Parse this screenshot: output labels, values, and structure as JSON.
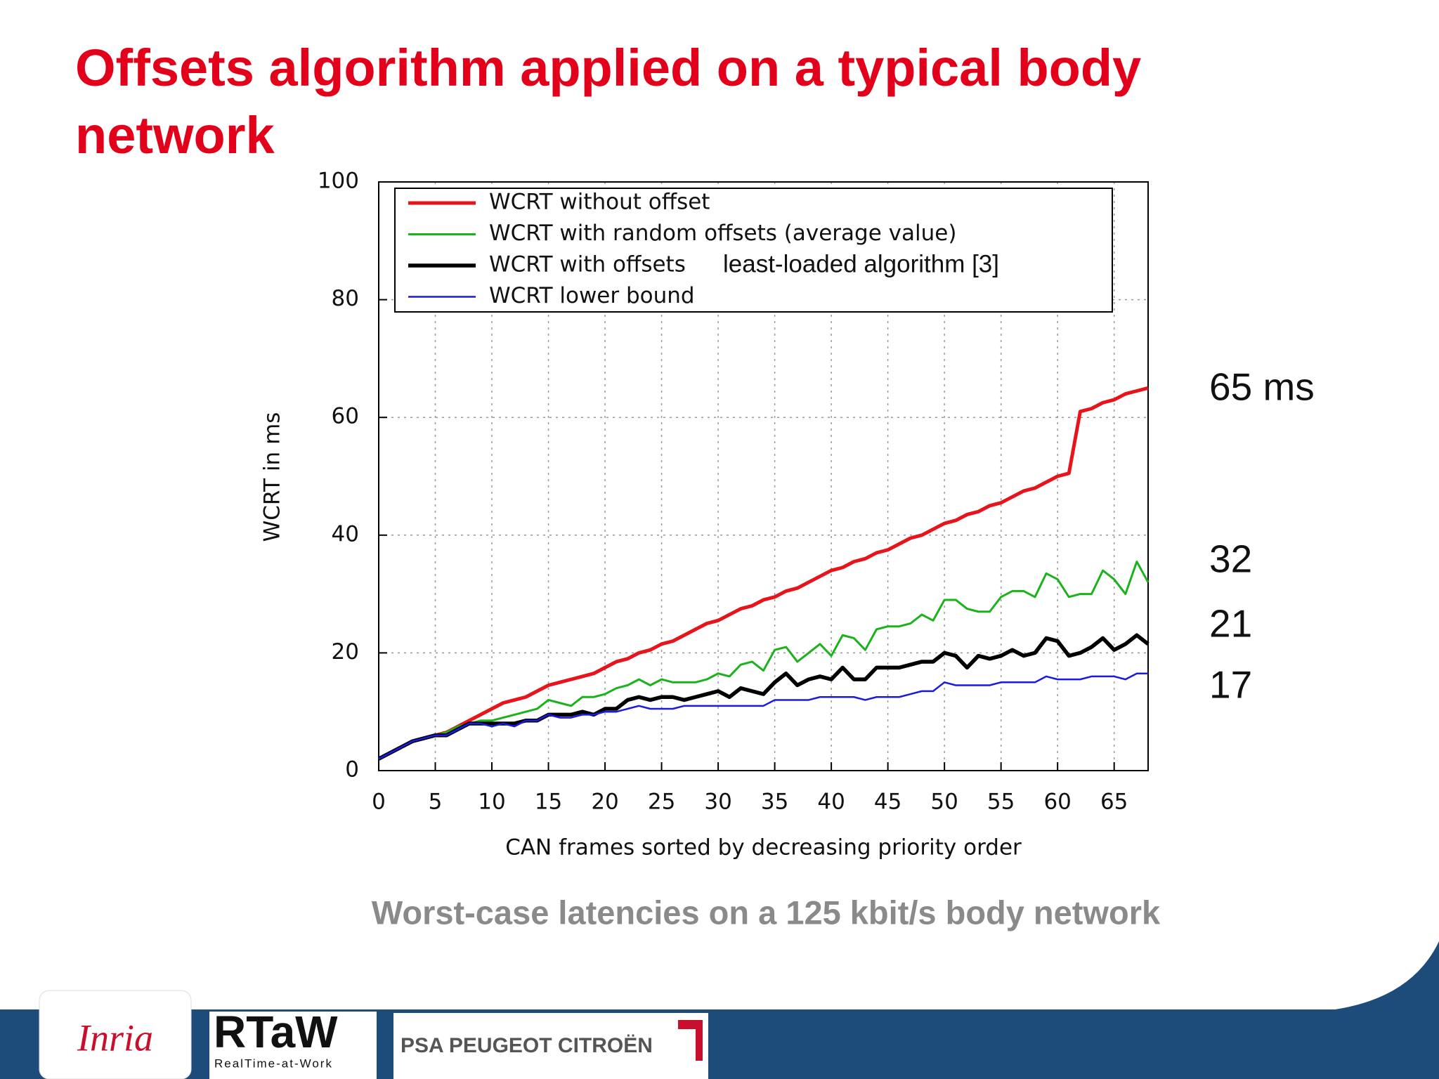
{
  "title": "Offsets algorithm applied on a typical body network",
  "chart_data": {
    "type": "line",
    "xlabel": "CAN frames sorted by decreasing priority order",
    "ylabel": "WCRT in ms",
    "x": [
      0,
      1,
      2,
      3,
      4,
      5,
      6,
      7,
      8,
      9,
      10,
      11,
      12,
      13,
      14,
      15,
      16,
      17,
      18,
      19,
      20,
      21,
      22,
      23,
      24,
      25,
      26,
      27,
      28,
      29,
      30,
      31,
      32,
      33,
      34,
      35,
      36,
      37,
      38,
      39,
      40,
      41,
      42,
      43,
      44,
      45,
      46,
      47,
      48,
      49,
      50,
      51,
      52,
      53,
      54,
      55,
      56,
      57,
      58,
      59,
      60,
      61,
      62,
      63,
      64,
      65,
      66,
      67,
      68
    ],
    "series": [
      {
        "name": "WCRT without offset",
        "color": "#e8141c",
        "values": [
          2,
          3,
          4,
          5,
          5.5,
          6,
          6.5,
          7.5,
          8.5,
          9.5,
          10.5,
          11.5,
          12,
          12.5,
          13.5,
          14.5,
          15,
          15.5,
          16,
          16.5,
          17.5,
          18.5,
          19,
          20,
          20.5,
          21.5,
          22,
          23,
          24,
          25,
          25.5,
          26.5,
          27.5,
          28,
          29,
          29.5,
          30.5,
          31,
          32,
          33,
          34,
          34.5,
          35.5,
          36,
          37,
          37.5,
          38.5,
          39.5,
          40,
          41,
          42,
          42.5,
          43.5,
          44,
          45,
          45.5,
          46.5,
          47.5,
          48,
          49,
          50,
          50.5,
          61,
          61.5,
          62.5,
          63,
          64,
          64.5,
          65
        ]
      },
      {
        "name": "WCRT with random offsets (average value)",
        "color": "#1cb21c",
        "values": [
          2,
          3,
          4,
          5,
          5.5,
          6,
          6.5,
          7.5,
          8,
          8.5,
          8.5,
          9,
          9.5,
          10,
          10.5,
          12,
          11.5,
          11,
          12.5,
          12.5,
          13,
          14,
          14.5,
          15.5,
          14.5,
          15.5,
          15,
          15,
          15,
          15.5,
          16.5,
          16,
          18,
          18.5,
          17,
          20.5,
          21,
          18.5,
          20,
          21.5,
          19.5,
          23,
          22.5,
          20.5,
          24,
          24.5,
          24.5,
          25,
          26.5,
          25.5,
          29,
          29,
          27.5,
          27,
          27,
          29.5,
          30.5,
          30.5,
          29.5,
          33.5,
          32.5,
          29.5,
          30,
          30,
          34,
          32.5,
          30,
          35.5,
          32
        ]
      },
      {
        "name": "WCRT with offsets",
        "color": "#000000",
        "values": [
          2,
          3,
          4,
          5,
          5.5,
          6,
          6,
          7,
          8,
          8,
          8,
          8,
          8,
          8.5,
          8.5,
          9.5,
          9.5,
          9.5,
          10,
          9.5,
          10.5,
          10.5,
          12,
          12.5,
          12,
          12.5,
          12.5,
          12,
          12.5,
          13,
          13.5,
          12.5,
          14,
          13.5,
          13,
          15,
          16.5,
          14.5,
          15.5,
          16,
          15.5,
          17.5,
          15.5,
          15.5,
          17.5,
          17.5,
          17.5,
          18,
          18.5,
          18.5,
          20,
          19.5,
          17.5,
          19.5,
          19,
          19.5,
          20.5,
          19.5,
          20,
          22.5,
          22,
          19.5,
          20,
          21,
          22.5,
          20.5,
          21.5,
          23,
          21.5
        ]
      },
      {
        "name": "WCRT lower bound",
        "color": "#1a1ae0",
        "values": [
          2,
          3,
          4,
          5,
          5.5,
          6,
          6,
          7,
          8,
          8,
          7.5,
          8,
          7.5,
          8.5,
          8.5,
          9.5,
          9,
          9,
          9.5,
          9.5,
          10,
          10,
          10.5,
          11,
          10.5,
          10.5,
          10.5,
          11,
          11,
          11,
          11,
          11,
          11,
          11,
          11,
          12,
          12,
          12,
          12,
          12.5,
          12.5,
          12.5,
          12.5,
          12,
          12.5,
          12.5,
          12.5,
          13,
          13.5,
          13.5,
          15,
          14.5,
          14.5,
          14.5,
          14.5,
          15,
          15,
          15,
          15,
          16,
          15.5,
          15.5,
          15.5,
          16,
          16,
          16,
          15.5,
          16.5,
          16.5
        ]
      }
    ],
    "xlim": [
      0,
      68
    ],
    "xticks": [
      0,
      5,
      10,
      15,
      20,
      25,
      30,
      35,
      40,
      45,
      50,
      55,
      60,
      65
    ],
    "ylim": [
      0,
      100
    ],
    "yticks": [
      0,
      20,
      40,
      60,
      80,
      100
    ],
    "grid": true,
    "legend": "top-left",
    "legend_note": "least-loaded algorithm [3]",
    "annotations": [
      "65 ms",
      "32",
      "21",
      "17"
    ]
  },
  "caption": "Worst-case latencies on a 125 kbit/s body network",
  "logos": {
    "inria": "Inria",
    "rtaw": "RTaW",
    "rtaw_sub": "RealTime-at-Work",
    "psa": "PSA PEUGEOT CITROËN"
  }
}
